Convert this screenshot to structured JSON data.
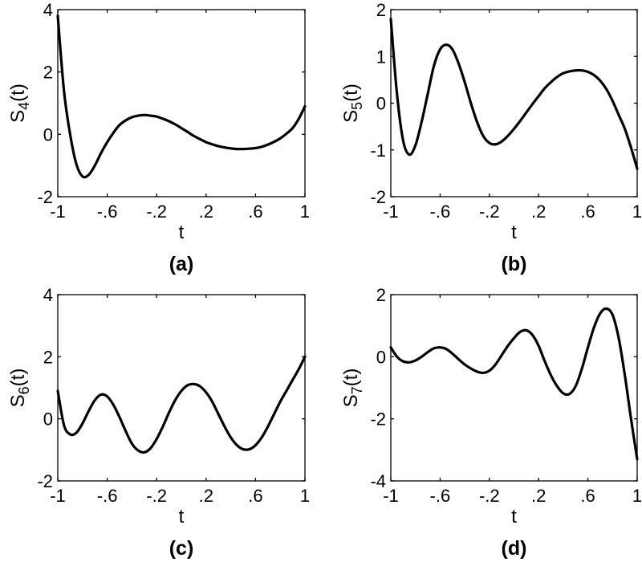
{
  "chart_data": [
    {
      "type": "line",
      "panel_label": "(a)",
      "xlabel": "t",
      "ylabel_base": "S",
      "ylabel_sub": "4",
      "ylabel_suffix": "(t)",
      "xlim": [
        -1,
        1
      ],
      "ylim": [
        -2,
        4
      ],
      "xticks": [
        -1,
        -0.6,
        -0.2,
        0.2,
        0.6,
        1
      ],
      "yticks": [
        -2,
        0,
        2,
        4
      ],
      "grid": false,
      "series": [
        {
          "x": [
            -1,
            -0.95,
            -0.9,
            -0.85,
            -0.8,
            -0.75,
            -0.7,
            -0.65,
            -0.6,
            -0.55,
            -0.5,
            -0.45,
            -0.4,
            -0.35,
            -0.3,
            -0.25,
            -0.2,
            -0.15,
            -0.1,
            -0.05,
            0,
            0.05,
            0.1,
            0.15,
            0.2,
            0.25,
            0.3,
            0.35,
            0.4,
            0.45,
            0.5,
            0.55,
            0.6,
            0.65,
            0.7,
            0.75,
            0.8,
            0.85,
            0.9,
            0.95,
            1
          ],
          "y": [
            3.8,
            1.4,
            0.0,
            -0.95,
            -1.35,
            -1.3,
            -1.0,
            -0.6,
            -0.25,
            0.05,
            0.3,
            0.45,
            0.55,
            0.6,
            0.62,
            0.6,
            0.57,
            0.5,
            0.42,
            0.32,
            0.2,
            0.08,
            -0.05,
            -0.15,
            -0.25,
            -0.32,
            -0.38,
            -0.42,
            -0.45,
            -0.47,
            -0.47,
            -0.46,
            -0.44,
            -0.4,
            -0.33,
            -0.24,
            -0.13,
            0.02,
            0.2,
            0.5,
            0.9
          ]
        }
      ]
    },
    {
      "type": "line",
      "panel_label": "(b)",
      "xlabel": "t",
      "ylabel_base": "S",
      "ylabel_sub": "5",
      "ylabel_suffix": "(t)",
      "xlim": [
        -1,
        1
      ],
      "ylim": [
        -2,
        2
      ],
      "xticks": [
        -1,
        -0.6,
        -0.2,
        0.2,
        0.6,
        1
      ],
      "yticks": [
        -2,
        -1,
        0,
        1,
        2
      ],
      "grid": false,
      "series": [
        {
          "x": [
            -1,
            -0.95,
            -0.9,
            -0.85,
            -0.8,
            -0.75,
            -0.7,
            -0.65,
            -0.6,
            -0.55,
            -0.5,
            -0.45,
            -0.4,
            -0.35,
            -0.3,
            -0.25,
            -0.2,
            -0.15,
            -0.1,
            -0.05,
            0,
            0.05,
            0.1,
            0.15,
            0.2,
            0.25,
            0.3,
            0.35,
            0.4,
            0.45,
            0.5,
            0.55,
            0.6,
            0.65,
            0.7,
            0.75,
            0.8,
            0.85,
            0.9,
            0.95,
            1
          ],
          "y": [
            1.8,
            0.2,
            -0.8,
            -1.1,
            -0.9,
            -0.4,
            0.2,
            0.8,
            1.15,
            1.25,
            1.15,
            0.85,
            0.45,
            0.0,
            -0.4,
            -0.7,
            -0.85,
            -0.88,
            -0.82,
            -0.7,
            -0.55,
            -0.38,
            -0.2,
            -0.02,
            0.15,
            0.32,
            0.45,
            0.56,
            0.64,
            0.68,
            0.7,
            0.7,
            0.67,
            0.6,
            0.48,
            0.3,
            0.05,
            -0.25,
            -0.55,
            -0.95,
            -1.4
          ]
        }
      ]
    },
    {
      "type": "line",
      "panel_label": "(c)",
      "xlabel": "t",
      "ylabel_base": "S",
      "ylabel_sub": "6",
      "ylabel_suffix": "(t)",
      "xlim": [
        -1,
        1
      ],
      "ylim": [
        -2,
        4
      ],
      "xticks": [
        -1,
        -0.6,
        -0.2,
        0.2,
        0.6,
        1
      ],
      "yticks": [
        -2,
        0,
        2,
        4
      ],
      "grid": false,
      "series": [
        {
          "x": [
            -1,
            -0.95,
            -0.9,
            -0.85,
            -0.8,
            -0.75,
            -0.7,
            -0.65,
            -0.6,
            -0.55,
            -0.5,
            -0.45,
            -0.4,
            -0.35,
            -0.3,
            -0.25,
            -0.2,
            -0.15,
            -0.1,
            -0.05,
            0,
            0.05,
            0.1,
            0.15,
            0.2,
            0.25,
            0.3,
            0.35,
            0.4,
            0.45,
            0.5,
            0.55,
            0.6,
            0.65,
            0.7,
            0.75,
            0.8,
            0.85,
            0.9,
            0.95,
            1
          ],
          "y": [
            0.9,
            -0.2,
            -0.5,
            -0.45,
            -0.15,
            0.25,
            0.6,
            0.78,
            0.72,
            0.45,
            0.05,
            -0.4,
            -0.8,
            -1.02,
            -1.08,
            -0.95,
            -0.65,
            -0.25,
            0.2,
            0.6,
            0.9,
            1.08,
            1.12,
            1.05,
            0.85,
            0.55,
            0.15,
            -0.25,
            -0.6,
            -0.85,
            -0.98,
            -0.98,
            -0.85,
            -0.6,
            -0.25,
            0.15,
            0.55,
            0.9,
            1.25,
            1.6,
            2.0
          ]
        }
      ]
    },
    {
      "type": "line",
      "panel_label": "(d)",
      "xlabel": "t",
      "ylabel_base": "S",
      "ylabel_sub": "7",
      "ylabel_suffix": "(t)",
      "xlim": [
        -1,
        1
      ],
      "ylim": [
        -4,
        2
      ],
      "xticks": [
        -1,
        -0.6,
        -0.2,
        0.2,
        0.6,
        1
      ],
      "yticks": [
        -4,
        -2,
        0,
        2
      ],
      "grid": false,
      "series": [
        {
          "x": [
            -1,
            -0.95,
            -0.9,
            -0.85,
            -0.8,
            -0.75,
            -0.7,
            -0.65,
            -0.6,
            -0.55,
            -0.5,
            -0.45,
            -0.4,
            -0.35,
            -0.3,
            -0.25,
            -0.2,
            -0.15,
            -0.1,
            -0.05,
            0,
            0.05,
            0.1,
            0.15,
            0.2,
            0.25,
            0.3,
            0.35,
            0.4,
            0.45,
            0.5,
            0.55,
            0.6,
            0.65,
            0.7,
            0.75,
            0.8,
            0.85,
            0.9,
            0.95,
            1
          ],
          "y": [
            0.3,
            0.0,
            -0.15,
            -0.18,
            -0.12,
            0.0,
            0.15,
            0.27,
            0.3,
            0.25,
            0.1,
            -0.08,
            -0.25,
            -0.38,
            -0.48,
            -0.52,
            -0.45,
            -0.25,
            0.05,
            0.35,
            0.6,
            0.8,
            0.85,
            0.7,
            0.35,
            -0.15,
            -0.6,
            -0.95,
            -1.18,
            -1.2,
            -0.95,
            -0.4,
            0.3,
            0.95,
            1.4,
            1.55,
            1.35,
            0.6,
            -0.6,
            -2.0,
            -3.3
          ]
        }
      ]
    }
  ]
}
